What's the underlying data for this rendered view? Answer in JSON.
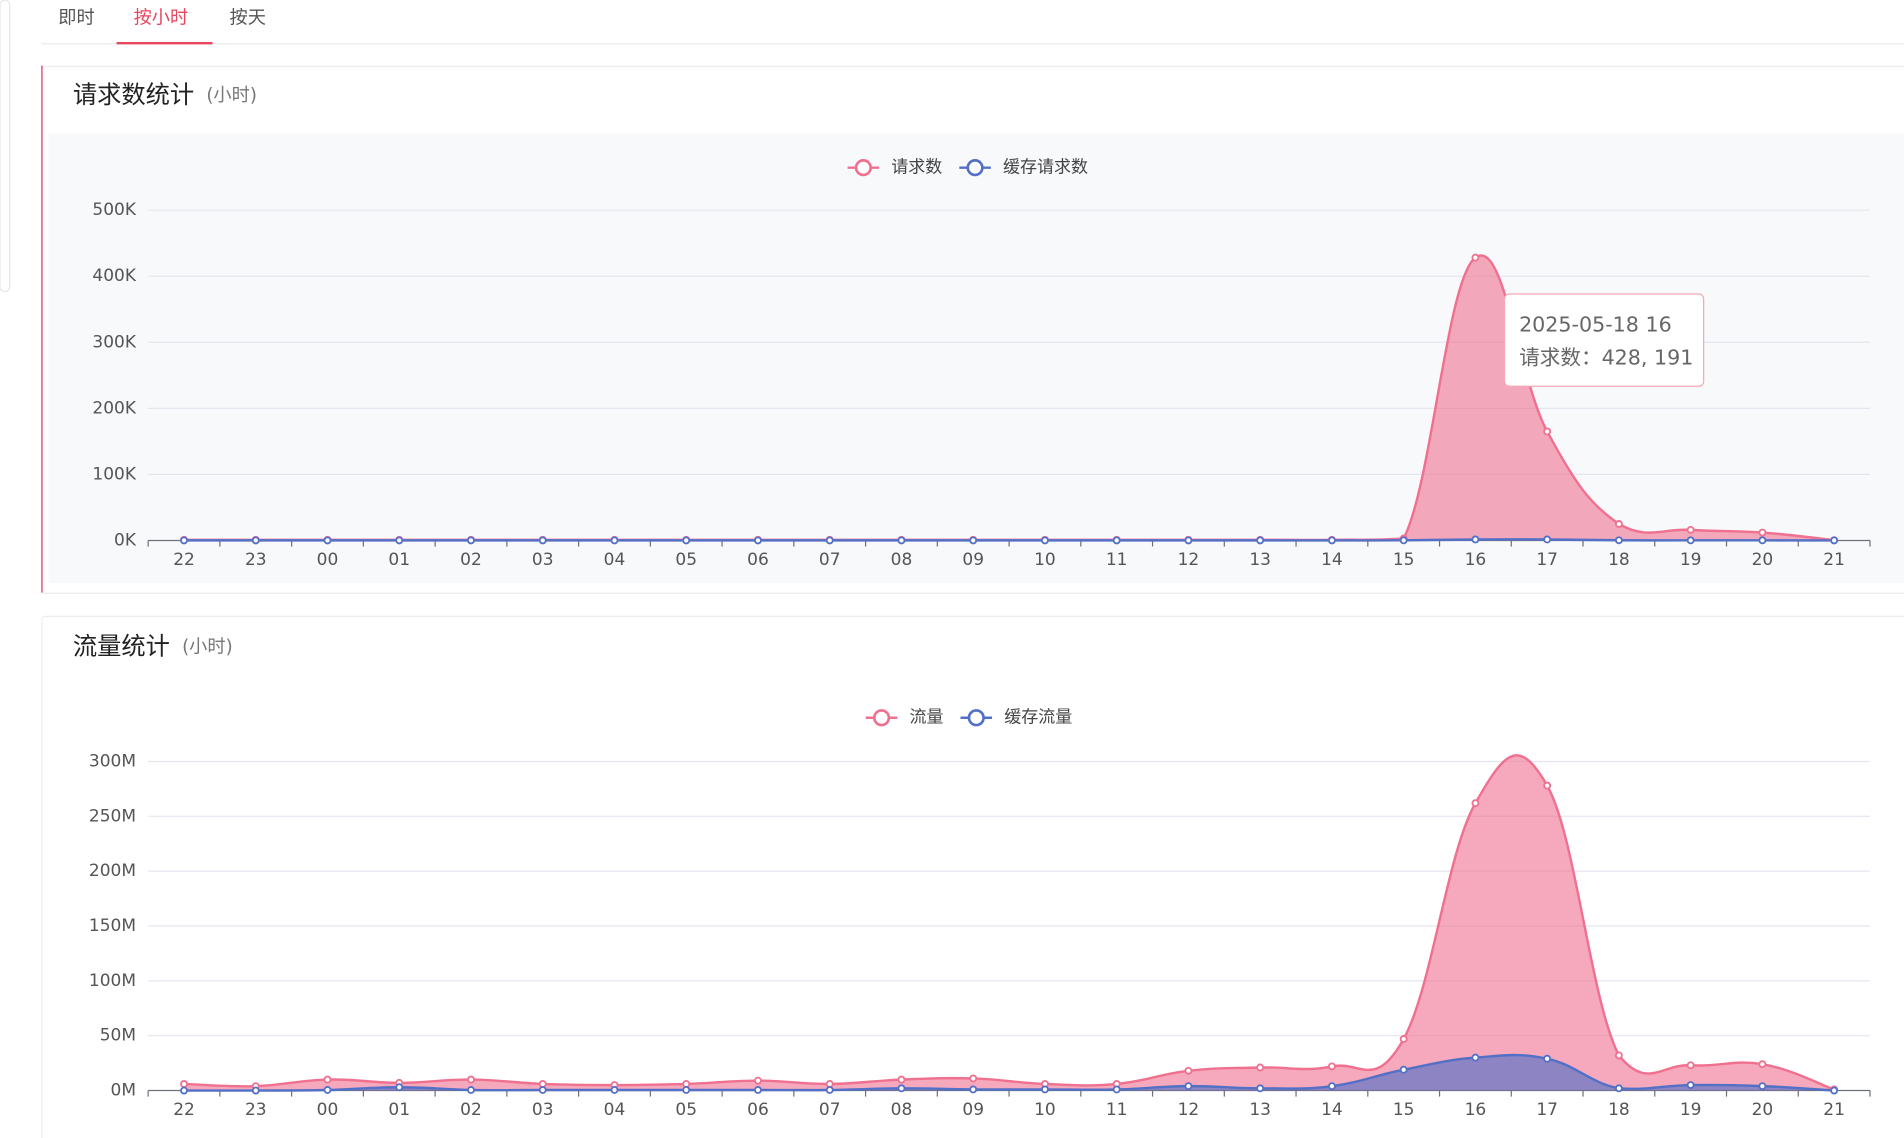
{
  "tabs": [
    "即时",
    "按小时",
    "按天"
  ],
  "chart_data": [
    {
      "type": "line",
      "area": true,
      "smooth": true,
      "title": "请求数统计",
      "subtitle": "(小时)",
      "categories": [
        "22",
        "23",
        "00",
        "01",
        "02",
        "03",
        "04",
        "05",
        "06",
        "07",
        "08",
        "09",
        "10",
        "11",
        "12",
        "13",
        "14",
        "15",
        "16",
        "17",
        "18",
        "19",
        "20",
        "21"
      ],
      "series": [
        {
          "name": "请求数",
          "color": "#f07090",
          "values": [
            1000,
            1000,
            1000,
            1000,
            1000,
            1000,
            1000,
            1000,
            1000,
            1000,
            1000,
            1000,
            1000,
            1000,
            1000,
            1000,
            1000,
            3000,
            428191,
            165000,
            25000,
            16000,
            12000,
            500
          ]
        },
        {
          "name": "缓存请求数",
          "color": "#5470c6",
          "values": [
            100,
            100,
            100,
            100,
            100,
            100,
            100,
            100,
            100,
            100,
            100,
            100,
            100,
            100,
            100,
            100,
            100,
            200,
            1500,
            1500,
            300,
            200,
            200,
            50
          ]
        }
      ],
      "ylim": [
        0,
        500000
      ],
      "yticks": [
        {
          "value": 0,
          "label": "0K"
        },
        {
          "value": 100000,
          "label": "100K"
        },
        {
          "value": 200000,
          "label": "200K"
        },
        {
          "value": 300000,
          "label": "300K"
        },
        {
          "value": 400000,
          "label": "400K"
        },
        {
          "value": 500000,
          "label": "500K"
        }
      ],
      "grid": true,
      "legend": "top",
      "tooltip": {
        "title": "2025-05-18 16",
        "label": "请求数：428, 191"
      }
    },
    {
      "type": "line",
      "area": true,
      "smooth": true,
      "title": "流量统计",
      "subtitle": "(小时)",
      "categories": [
        "22",
        "23",
        "00",
        "01",
        "02",
        "03",
        "04",
        "05",
        "06",
        "07",
        "08",
        "09",
        "10",
        "11",
        "12",
        "13",
        "14",
        "15",
        "16",
        "17",
        "18",
        "19",
        "20",
        "21"
      ],
      "series": [
        {
          "name": "流量",
          "color": "#f07090",
          "values": [
            6000000,
            4000000,
            10000000,
            7000000,
            10000000,
            6000000,
            5000000,
            6000000,
            9000000,
            6000000,
            10000000,
            11000000,
            6000000,
            6000000,
            18000000,
            21000000,
            22000000,
            47000000,
            262000000,
            278000000,
            32000000,
            23000000,
            24000000,
            1000000
          ]
        },
        {
          "name": "缓存流量",
          "color": "#5470c6",
          "values": [
            0,
            0,
            500000,
            3000000,
            500000,
            500000,
            500000,
            500000,
            500000,
            500000,
            2000000,
            1000000,
            1000000,
            1000000,
            4000000,
            2000000,
            4000000,
            19000000,
            30000000,
            29000000,
            2000000,
            5000000,
            4000000,
            0
          ]
        }
      ],
      "ylim": [
        0,
        300000000
      ],
      "yticks": [
        {
          "value": 0,
          "label": "0M"
        },
        {
          "value": 50000000,
          "label": "50M"
        },
        {
          "value": 100000000,
          "label": "100M"
        },
        {
          "value": 150000000,
          "label": "150M"
        },
        {
          "value": 200000000,
          "label": "200M"
        },
        {
          "value": 250000000,
          "label": "250M"
        },
        {
          "value": 300000000,
          "label": "300M"
        }
      ],
      "grid": true,
      "legend": "top"
    }
  ]
}
